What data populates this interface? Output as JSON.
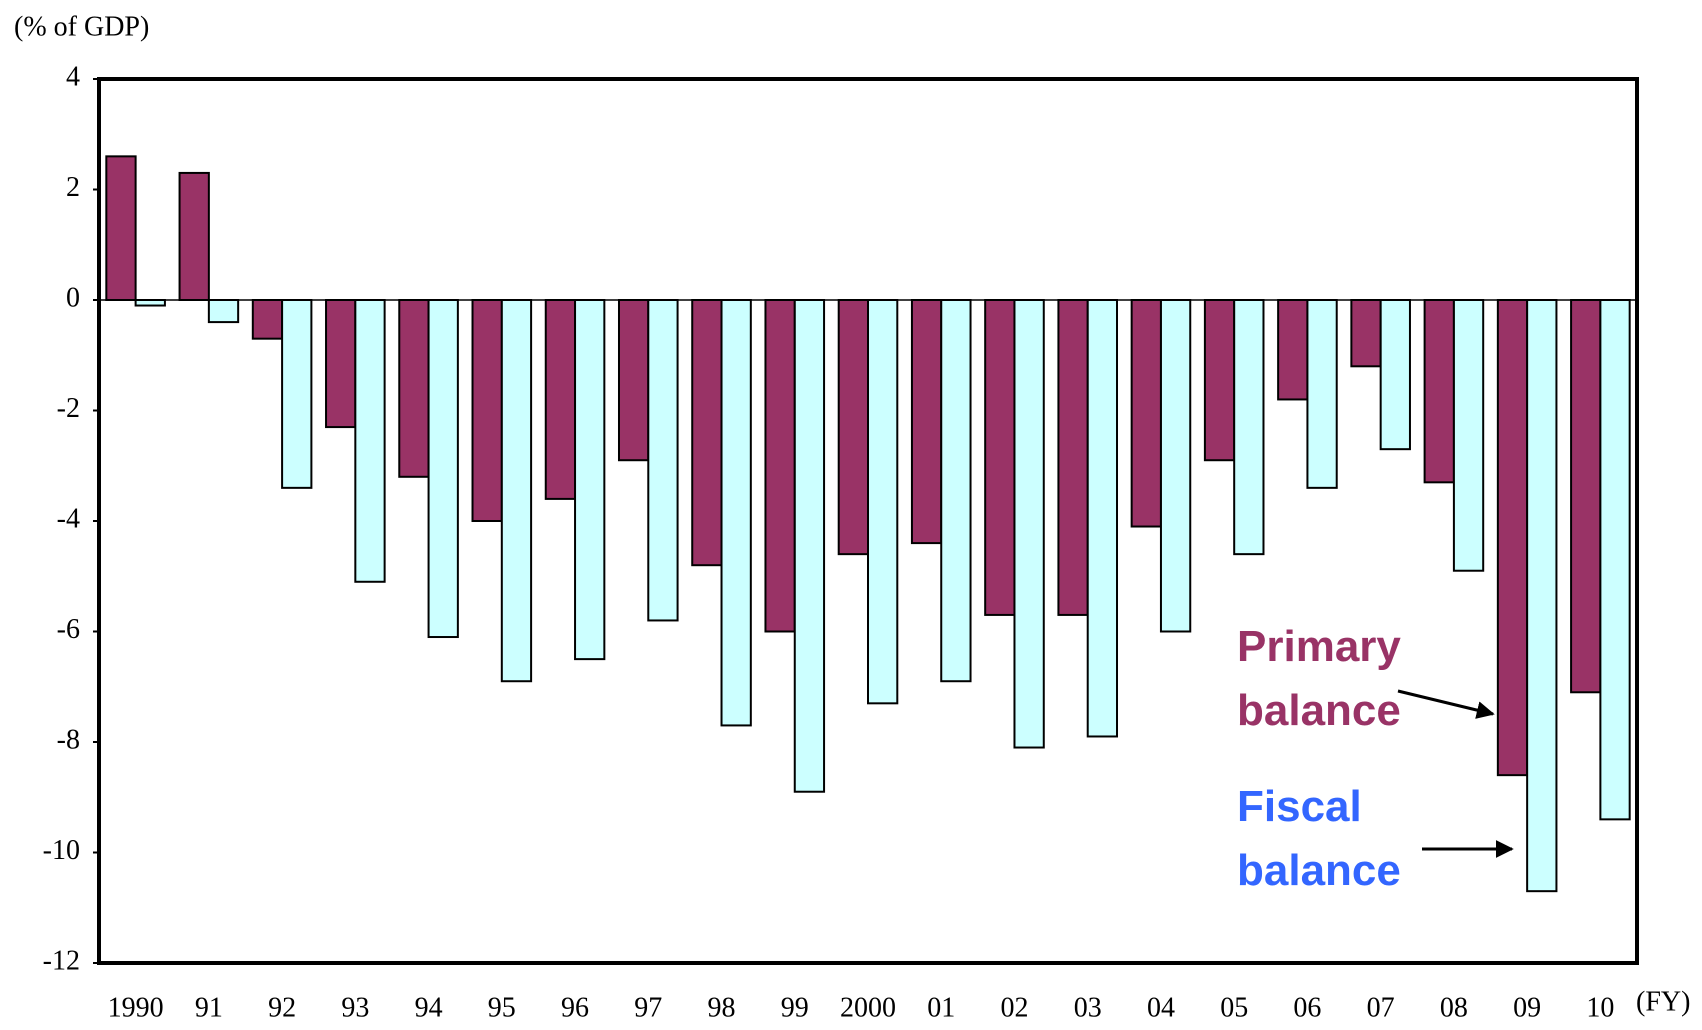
{
  "chart_data": {
    "type": "bar",
    "y_axis_label": "(% of GDP)",
    "x_axis_label": "(FY)",
    "categories": [
      "1990",
      "91",
      "92",
      "93",
      "94",
      "95",
      "96",
      "97",
      "98",
      "99",
      "2000",
      "01",
      "02",
      "03",
      "04",
      "05",
      "06",
      "07",
      "08",
      "09",
      "10"
    ],
    "series": [
      {
        "name": "Primary balance",
        "color": "#993366",
        "values": [
          2.6,
          2.3,
          -0.7,
          -2.3,
          -3.2,
          -4.0,
          -3.6,
          -2.9,
          -4.8,
          -6.0,
          -4.6,
          -4.4,
          -5.7,
          -5.7,
          -4.1,
          -2.9,
          -1.8,
          -1.2,
          -3.3,
          -8.6,
          -7.1
        ]
      },
      {
        "name": "Fiscal balance",
        "color": "#ccffff",
        "values": [
          -0.1,
          -0.4,
          -3.4,
          -5.1,
          -6.1,
          -6.9,
          -6.5,
          -5.8,
          -7.7,
          -8.9,
          -7.3,
          -6.9,
          -8.1,
          -7.9,
          -6.0,
          -4.6,
          -3.4,
          -2.7,
          -4.9,
          -10.7,
          -9.4
        ]
      }
    ],
    "legend_colors": [
      "#993366",
      "#3366ff"
    ],
    "ylim": [
      -12,
      4
    ],
    "yticks": [
      -12,
      -10,
      -8,
      -6,
      -4,
      -2,
      0,
      2,
      4
    ]
  }
}
